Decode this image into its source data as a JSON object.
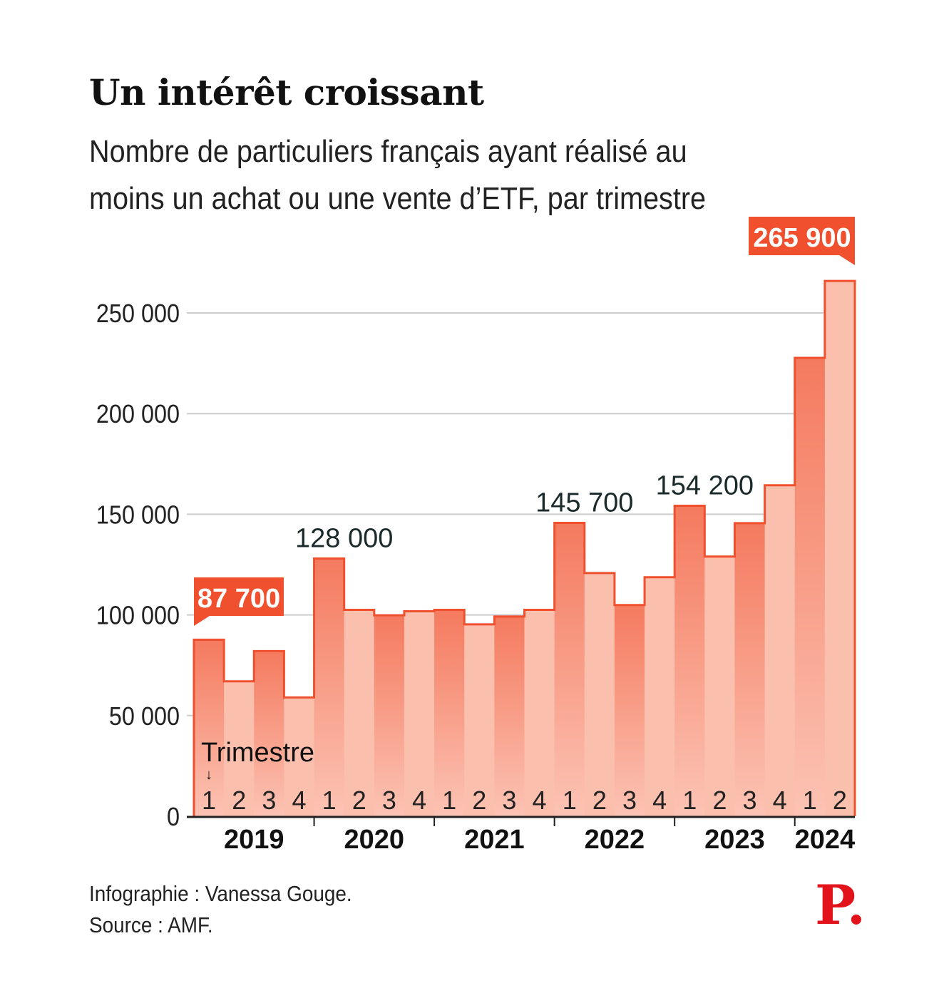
{
  "title": "Un intérêt croissant",
  "subtitle": "Nombre de particuliers français ayant réalisé au moins un achat ou une vente d’ETF, par trimestre",
  "credit": "Infographie : Vanessa Gouge.",
  "source": "Source : AMF.",
  "logo": "P.",
  "colors": {
    "accent": "#f0502e",
    "bar_dark_top": "#f47a5e",
    "bar_dark_bottom": "#fcc3b4",
    "bar_light": "#fbbfae",
    "grid": "#cccccc"
  },
  "chart_data": {
    "type": "bar",
    "title": "Un intérêt croissant",
    "xlabel": "Trimestre",
    "ylabel": "",
    "ylim": [
      0,
      275000
    ],
    "yticks": [
      0,
      50000,
      100000,
      150000,
      200000,
      250000
    ],
    "ytick_labels": [
      "0",
      "50 000",
      "100 000",
      "150 000",
      "200 000",
      "250 000"
    ],
    "grid": true,
    "years": [
      "2019",
      "2020",
      "2021",
      "2022",
      "2023",
      "2024"
    ],
    "quarters": [
      "1",
      "2",
      "3",
      "4",
      "1",
      "2",
      "3",
      "4",
      "1",
      "2",
      "3",
      "4",
      "1",
      "2",
      "3",
      "4",
      "1",
      "2",
      "3",
      "4",
      "1",
      "2"
    ],
    "categories": [
      "2019 T1",
      "2019 T2",
      "2019 T3",
      "2019 T4",
      "2020 T1",
      "2020 T2",
      "2020 T3",
      "2020 T4",
      "2021 T1",
      "2021 T2",
      "2021 T3",
      "2021 T4",
      "2022 T1",
      "2022 T2",
      "2022 T3",
      "2022 T4",
      "2023 T1",
      "2023 T2",
      "2023 T3",
      "2023 T4",
      "2024 T1",
      "2024 T2"
    ],
    "values": [
      87700,
      67000,
      82000,
      59000,
      128000,
      102500,
      99800,
      101800,
      102500,
      95300,
      99200,
      102500,
      145700,
      120800,
      104900,
      118700,
      154200,
      129000,
      145600,
      164400,
      227700,
      265900
    ],
    "annotations": [
      {
        "index": 0,
        "label": "87 700",
        "highlight": true
      },
      {
        "index": 4,
        "label": "128 000",
        "highlight": false
      },
      {
        "index": 12,
        "label": "145 700",
        "highlight": false
      },
      {
        "index": 16,
        "label": "154 200",
        "highlight": false
      },
      {
        "index": 21,
        "label": "265 900",
        "highlight": true
      }
    ]
  }
}
